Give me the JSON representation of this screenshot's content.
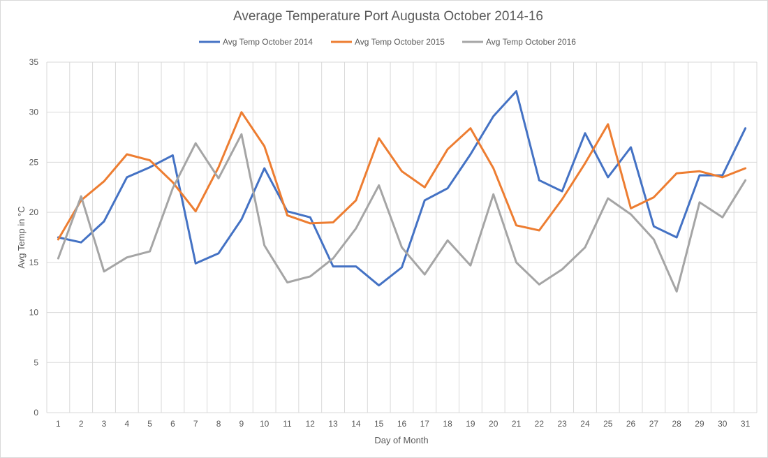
{
  "chart_data": {
    "type": "line",
    "title": "Average Temperature Port Augusta October 2014-16",
    "xlabel": "Day of Month",
    "ylabel": "Avg Temp in °C",
    "ylim": [
      0,
      35
    ],
    "yticks": [
      0,
      5,
      10,
      15,
      20,
      25,
      30,
      35
    ],
    "grid": true,
    "legend_position": "top",
    "categories": [
      "1",
      "2",
      "3",
      "4",
      "5",
      "6",
      "7",
      "8",
      "9",
      "10",
      "11",
      "12",
      "13",
      "14",
      "15",
      "16",
      "17",
      "18",
      "19",
      "20",
      "21",
      "22",
      "23",
      "24",
      "25",
      "26",
      "27",
      "28",
      "29",
      "30",
      "31"
    ],
    "series": [
      {
        "name": "Avg Temp October 2014",
        "color": "#4472c4",
        "values": [
          17.5,
          17.0,
          19.1,
          23.5,
          24.5,
          25.7,
          14.9,
          15.9,
          19.3,
          24.4,
          20.1,
          19.5,
          14.6,
          14.6,
          12.7,
          14.5,
          21.2,
          22.4,
          25.8,
          29.6,
          32.1,
          23.2,
          22.1,
          27.9,
          23.5,
          26.5,
          18.6,
          17.5,
          23.7,
          23.7,
          28.4
        ]
      },
      {
        "name": "Avg Temp October 2015",
        "color": "#ed7d31",
        "values": [
          17.3,
          21.2,
          23.1,
          25.8,
          25.2,
          23.0,
          20.1,
          24.5,
          30.0,
          26.6,
          19.7,
          18.9,
          19.0,
          21.2,
          27.4,
          24.1,
          22.5,
          26.3,
          28.4,
          24.4,
          18.7,
          18.2,
          21.3,
          24.9,
          28.8,
          20.4,
          21.5,
          23.9,
          24.1,
          23.5,
          24.4
        ]
      },
      {
        "name": "Avg Temp October 2016",
        "color": "#a5a5a5",
        "values": [
          15.4,
          21.6,
          14.1,
          15.5,
          16.1,
          22.4,
          26.9,
          23.4,
          27.8,
          16.7,
          13.0,
          13.6,
          15.4,
          18.4,
          22.7,
          16.5,
          13.8,
          17.2,
          14.7,
          21.8,
          15.0,
          12.8,
          14.3,
          16.5,
          21.4,
          19.8,
          17.3,
          12.1,
          21.0,
          19.5,
          23.2
        ]
      }
    ]
  }
}
